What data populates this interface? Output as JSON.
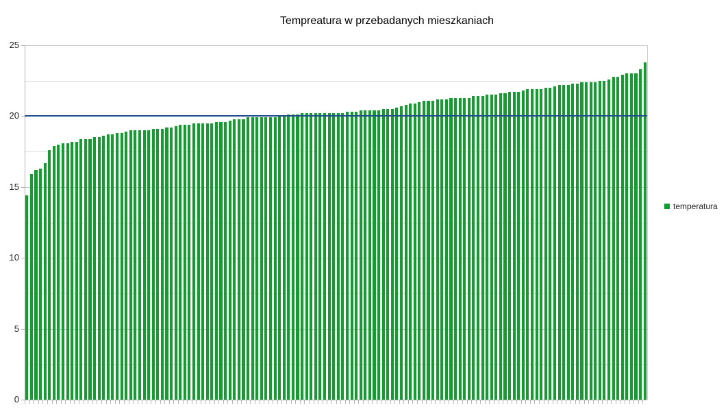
{
  "chart_data": {
    "type": "bar",
    "title": "Tempreatura w przebadanych mieszkaniach",
    "xlabel": "",
    "ylabel": "",
    "ylim": [
      0,
      25
    ],
    "yticks": [
      0,
      5,
      10,
      15,
      20,
      25
    ],
    "grid": true,
    "minor_grid_step": 2.5,
    "legend_position": "right",
    "reference_line": {
      "value": 20,
      "color": "#1f4e8c"
    },
    "series": [
      {
        "name": "temperatura",
        "color": "#109e2c",
        "values": [
          14.4,
          15.9,
          16.2,
          16.3,
          16.7,
          17.6,
          17.9,
          18.0,
          18.1,
          18.1,
          18.2,
          18.2,
          18.4,
          18.4,
          18.4,
          18.5,
          18.5,
          18.6,
          18.7,
          18.7,
          18.8,
          18.8,
          18.9,
          19.0,
          19.0,
          19.0,
          19.0,
          19.0,
          19.1,
          19.1,
          19.1,
          19.2,
          19.2,
          19.3,
          19.4,
          19.4,
          19.4,
          19.5,
          19.5,
          19.5,
          19.5,
          19.5,
          19.6,
          19.6,
          19.6,
          19.7,
          19.8,
          19.8,
          19.8,
          19.9,
          19.9,
          19.9,
          19.9,
          19.9,
          19.9,
          19.9,
          20.0,
          20.0,
          20.1,
          20.1,
          20.1,
          20.2,
          20.2,
          20.2,
          20.2,
          20.2,
          20.2,
          20.2,
          20.2,
          20.2,
          20.2,
          20.3,
          20.3,
          20.3,
          20.4,
          20.4,
          20.4,
          20.4,
          20.4,
          20.5,
          20.5,
          20.5,
          20.6,
          20.7,
          20.8,
          20.9,
          20.9,
          21.0,
          21.1,
          21.1,
          21.1,
          21.2,
          21.2,
          21.2,
          21.3,
          21.3,
          21.3,
          21.3,
          21.3,
          21.4,
          21.4,
          21.4,
          21.5,
          21.5,
          21.5,
          21.6,
          21.6,
          21.7,
          21.7,
          21.7,
          21.8,
          21.9,
          21.9,
          21.9,
          21.9,
          22.0,
          22.0,
          22.1,
          22.2,
          22.2,
          22.2,
          22.3,
          22.3,
          22.4,
          22.4,
          22.4,
          22.4,
          22.5,
          22.5,
          22.6,
          22.8,
          22.8,
          22.9,
          23.0,
          23.0,
          23.0,
          23.3,
          23.8
        ]
      }
    ]
  },
  "legend": {
    "label": "temperatura"
  }
}
